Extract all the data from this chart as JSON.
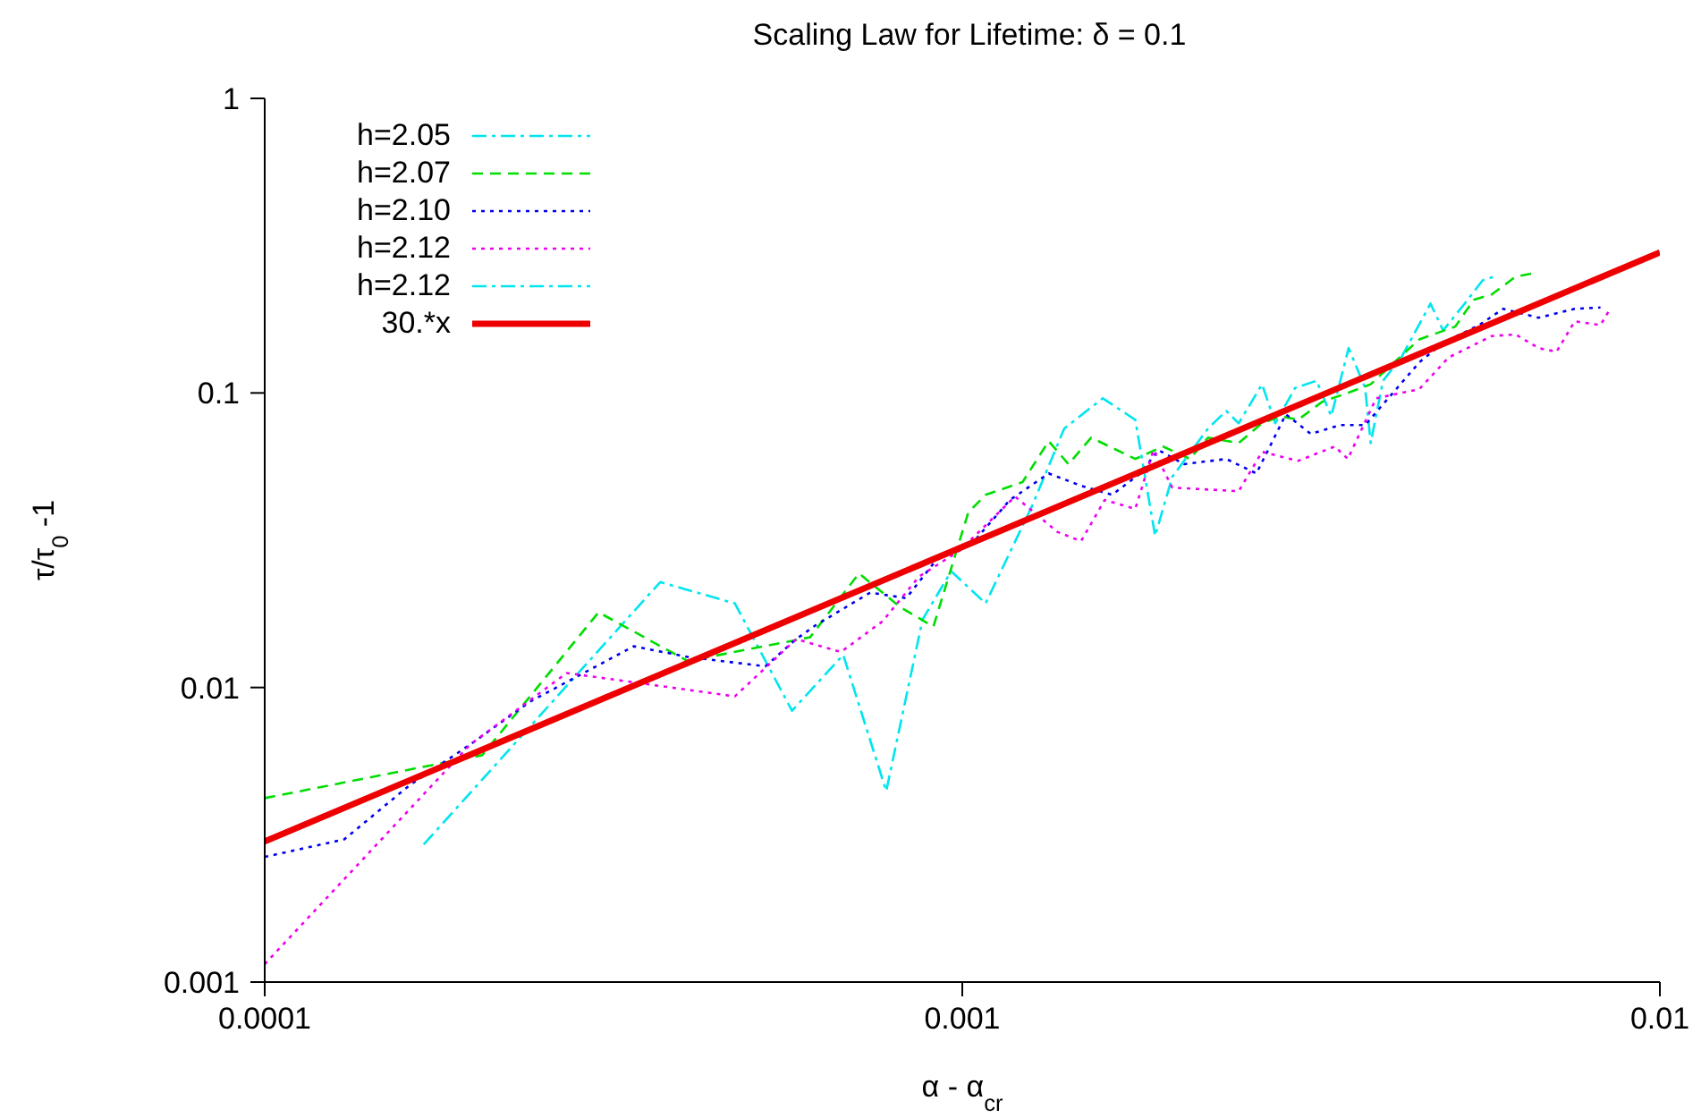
{
  "chart_data": {
    "type": "line",
    "title": "Scaling Law for Lifetime: δ = 0.1",
    "xlabel": "α - α$_{cr}$",
    "ylabel": "τ/τ$_{0}$-1",
    "log": "xy",
    "xlim": [
      0.0001,
      0.01
    ],
    "ylim": [
      0.001,
      1
    ],
    "xticks": [
      0.0001,
      0.001,
      0.01
    ],
    "yticks": [
      0.001,
      0.01,
      0.1,
      1
    ],
    "legend": "top left",
    "grid": false,
    "marker": "none",
    "series": [
      {
        "name": "h=2.05",
        "color": "#00e5ee",
        "line_style": "dashdot",
        "x": [
          0.000169,
          0.000369,
          0.000472,
          0.00057,
          0.000675,
          0.000778,
          0.000877,
          0.000964,
          0.00108,
          0.00126,
          0.0014,
          0.00159,
          0.00177,
          0.00189,
          0.002,
          0.00225,
          0.00239,
          0.00249,
          0.00269,
          0.00281,
          0.003,
          0.00322,
          0.00338,
          0.00358,
          0.00378,
          0.00385,
          0.00401,
          0.00426,
          0.00469,
          0.00489,
          0.00525,
          0.00557,
          0.00578
        ],
        "values": [
          0.00293,
          0.0228,
          0.0193,
          0.00834,
          0.0129,
          0.00445,
          0.017,
          0.0248,
          0.0193,
          0.0415,
          0.0757,
          0.0959,
          0.0811,
          0.0327,
          0.0519,
          0.0757,
          0.0869,
          0.0789,
          0.107,
          0.0789,
          0.104,
          0.11,
          0.0834,
          0.142,
          0.104,
          0.0676,
          0.11,
          0.132,
          0.201,
          0.163,
          0.201,
          0.241,
          0.248
        ]
      },
      {
        "name": "h=2.07",
        "color": "#00dd00",
        "line_style": "dashed",
        "x": [
          0.0001,
          0.000205,
          0.000301,
          0.000404,
          0.000605,
          0.000711,
          0.000816,
          0.000909,
          0.00102,
          0.00108,
          0.00122,
          0.00133,
          0.00142,
          0.00153,
          0.00177,
          0.00194,
          0.00212,
          0.00225,
          0.00249,
          0.00269,
          0.00286,
          0.00303,
          0.00328,
          0.00357,
          0.00385,
          0.00416,
          0.00452,
          0.00509,
          0.00541,
          0.00574,
          0.00621,
          0.00659
        ],
        "values": [
          0.00421,
          0.00589,
          0.018,
          0.0123,
          0.0148,
          0.0244,
          0.0187,
          0.0161,
          0.0393,
          0.0451,
          0.0498,
          0.0686,
          0.0573,
          0.0705,
          0.0597,
          0.0658,
          0.0597,
          0.0705,
          0.0676,
          0.0789,
          0.0834,
          0.0811,
          0.0933,
          0.1,
          0.107,
          0.127,
          0.152,
          0.168,
          0.207,
          0.216,
          0.248,
          0.255
        ]
      },
      {
        "name": "h=2.10",
        "color": "#0000ee",
        "line_style": "dotted",
        "x": [
          0.0001,
          0.00013,
          0.000161,
          0.000197,
          0.00024,
          0.000338,
          0.000404,
          0.000522,
          0.000578,
          0.000617,
          0.000738,
          0.000831,
          0.00092,
          0.00104,
          0.00117,
          0.00133,
          0.00148,
          0.00164,
          0.0018,
          0.00191,
          0.00208,
          0.00239,
          0.00264,
          0.00291,
          0.00316,
          0.00348,
          0.00378,
          0.00408,
          0.00452,
          0.00489,
          0.00551,
          0.00596,
          0.0067,
          0.00755,
          0.00822
        ],
        "values": [
          0.00266,
          0.00305,
          0.00464,
          0.0064,
          0.00895,
          0.0138,
          0.0127,
          0.0118,
          0.0146,
          0.0163,
          0.021,
          0.0201,
          0.0273,
          0.0314,
          0.0433,
          0.0533,
          0.0484,
          0.0451,
          0.0533,
          0.064,
          0.0573,
          0.0597,
          0.0533,
          0.0846,
          0.0726,
          0.0778,
          0.0778,
          0.0959,
          0.127,
          0.148,
          0.17,
          0.193,
          0.18,
          0.193,
          0.195
        ]
      },
      {
        "name": "h=2.12",
        "color": "#ee00ee",
        "line_style": "dotted",
        "x": [
          0.0001,
          0.000197,
          0.000271,
          0.000472,
          0.000578,
          0.00067,
          0.000769,
          0.000867,
          0.000994,
          0.00119,
          0.00137,
          0.00148,
          0.0016,
          0.00177,
          0.00188,
          0.002,
          0.00249,
          0.00269,
          0.00303,
          0.00342,
          0.00357,
          0.00392,
          0.00452,
          0.00498,
          0.00574,
          0.00621,
          0.0067,
          0.00711,
          0.00755,
          0.00822,
          0.00851
        ],
        "values": [
          0.00115,
          0.0064,
          0.0112,
          0.00933,
          0.0146,
          0.0132,
          0.0168,
          0.0238,
          0.0293,
          0.0445,
          0.0337,
          0.0314,
          0.0433,
          0.0404,
          0.064,
          0.0477,
          0.0464,
          0.0631,
          0.0588,
          0.0658,
          0.0597,
          0.0959,
          0.103,
          0.132,
          0.156,
          0.158,
          0.142,
          0.138,
          0.175,
          0.17,
          0.195
        ]
      },
      {
        "name": "h=2.12",
        "color": "#00e5ee",
        "line_style": "dashdot"
      },
      {
        "name": "30.*x",
        "color": "#ee0000",
        "line_style": "solid",
        "x": [
          0.0001,
          0.01
        ],
        "values": [
          0.003,
          0.3
        ]
      }
    ]
  }
}
